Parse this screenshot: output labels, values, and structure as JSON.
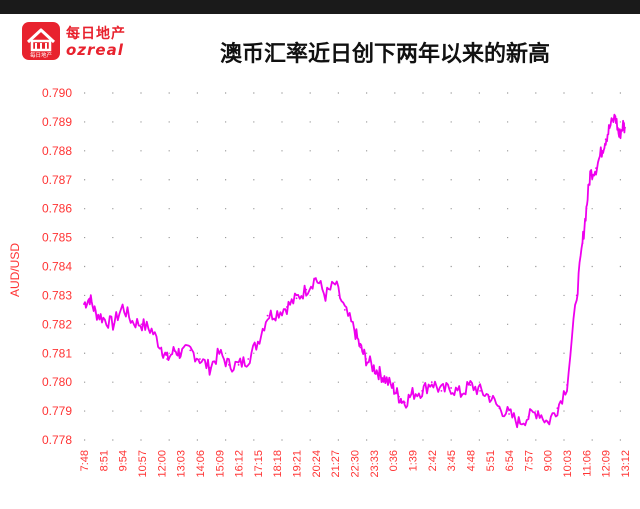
{
  "logo": {
    "cn": "每日地产",
    "en": "ozreal",
    "badge_text": "每日地产"
  },
  "colors": {
    "line": "#ee00ee",
    "axis_text": "#ff3333",
    "grid": "#9a9a9a",
    "brand": "#e8222e"
  },
  "chart_data": {
    "type": "line",
    "title": "澳币汇率近日创下两年以来的新高",
    "ylabel": "AUD/USD",
    "xlabel": "",
    "ylim": [
      0.778,
      0.79
    ],
    "yticks": [
      "0.790",
      "0.789",
      "0.788",
      "0.787",
      "0.786",
      "0.785",
      "0.784",
      "0.783",
      "0.782",
      "0.781",
      "0.780",
      "0.779",
      "0.778"
    ],
    "xticks": [
      "7:48",
      "8:51",
      "9:54",
      "10:57",
      "12:00",
      "13:03",
      "14:06",
      "15:09",
      "16:12",
      "17:15",
      "18:18",
      "19:21",
      "20:24",
      "21:27",
      "22:30",
      "23:33",
      "0:36",
      "1:39",
      "2:42",
      "3:45",
      "4:48",
      "5:51",
      "6:54",
      "7:57",
      "9:00",
      "10:03",
      "11:06",
      "12:09",
      "13:12"
    ],
    "grid": true,
    "series": [
      {
        "x": [
          0,
          0.3,
          0.6,
          1,
          1.5,
          2,
          2.5,
          3,
          3.5,
          4,
          4.3,
          4.7,
          5,
          5.5,
          6,
          6.5,
          7,
          7.5,
          8,
          8.5,
          9,
          9.5,
          10,
          10.5,
          11,
          11.5,
          12,
          12.5,
          13,
          13.5,
          14,
          14.3,
          14.6,
          15,
          15.3,
          15.6,
          16,
          16.3,
          16.6,
          17,
          17.5,
          18,
          18.5,
          19,
          19.5,
          20,
          20.5,
          21,
          21.5,
          22,
          22.5,
          23,
          23.5,
          24,
          24.5,
          25,
          25.5,
          25.8,
          26,
          26.2,
          26.5,
          26.8,
          27,
          27.2,
          27.5,
          27.7,
          27.9,
          28
        ],
        "values": [
          0.7827,
          0.7829,
          0.7824,
          0.7822,
          0.782,
          0.7826,
          0.7821,
          0.782,
          0.7818,
          0.7812,
          0.7808,
          0.7811,
          0.781,
          0.7811,
          0.7808,
          0.7805,
          0.781,
          0.7806,
          0.7806,
          0.7808,
          0.7814,
          0.7823,
          0.7824,
          0.7826,
          0.7829,
          0.7832,
          0.7836,
          0.783,
          0.7834,
          0.7825,
          0.7818,
          0.7812,
          0.7808,
          0.7805,
          0.7803,
          0.7801,
          0.7798,
          0.7795,
          0.7793,
          0.7796,
          0.7797,
          0.78,
          0.7797,
          0.7798,
          0.7796,
          0.7799,
          0.7797,
          0.7795,
          0.7791,
          0.7789,
          0.7786,
          0.7788,
          0.779,
          0.7786,
          0.7791,
          0.7799,
          0.783,
          0.7848,
          0.786,
          0.7872,
          0.7874,
          0.788,
          0.7884,
          0.7888,
          0.7892,
          0.7885,
          0.7889,
          0.7888
        ]
      }
    ]
  }
}
